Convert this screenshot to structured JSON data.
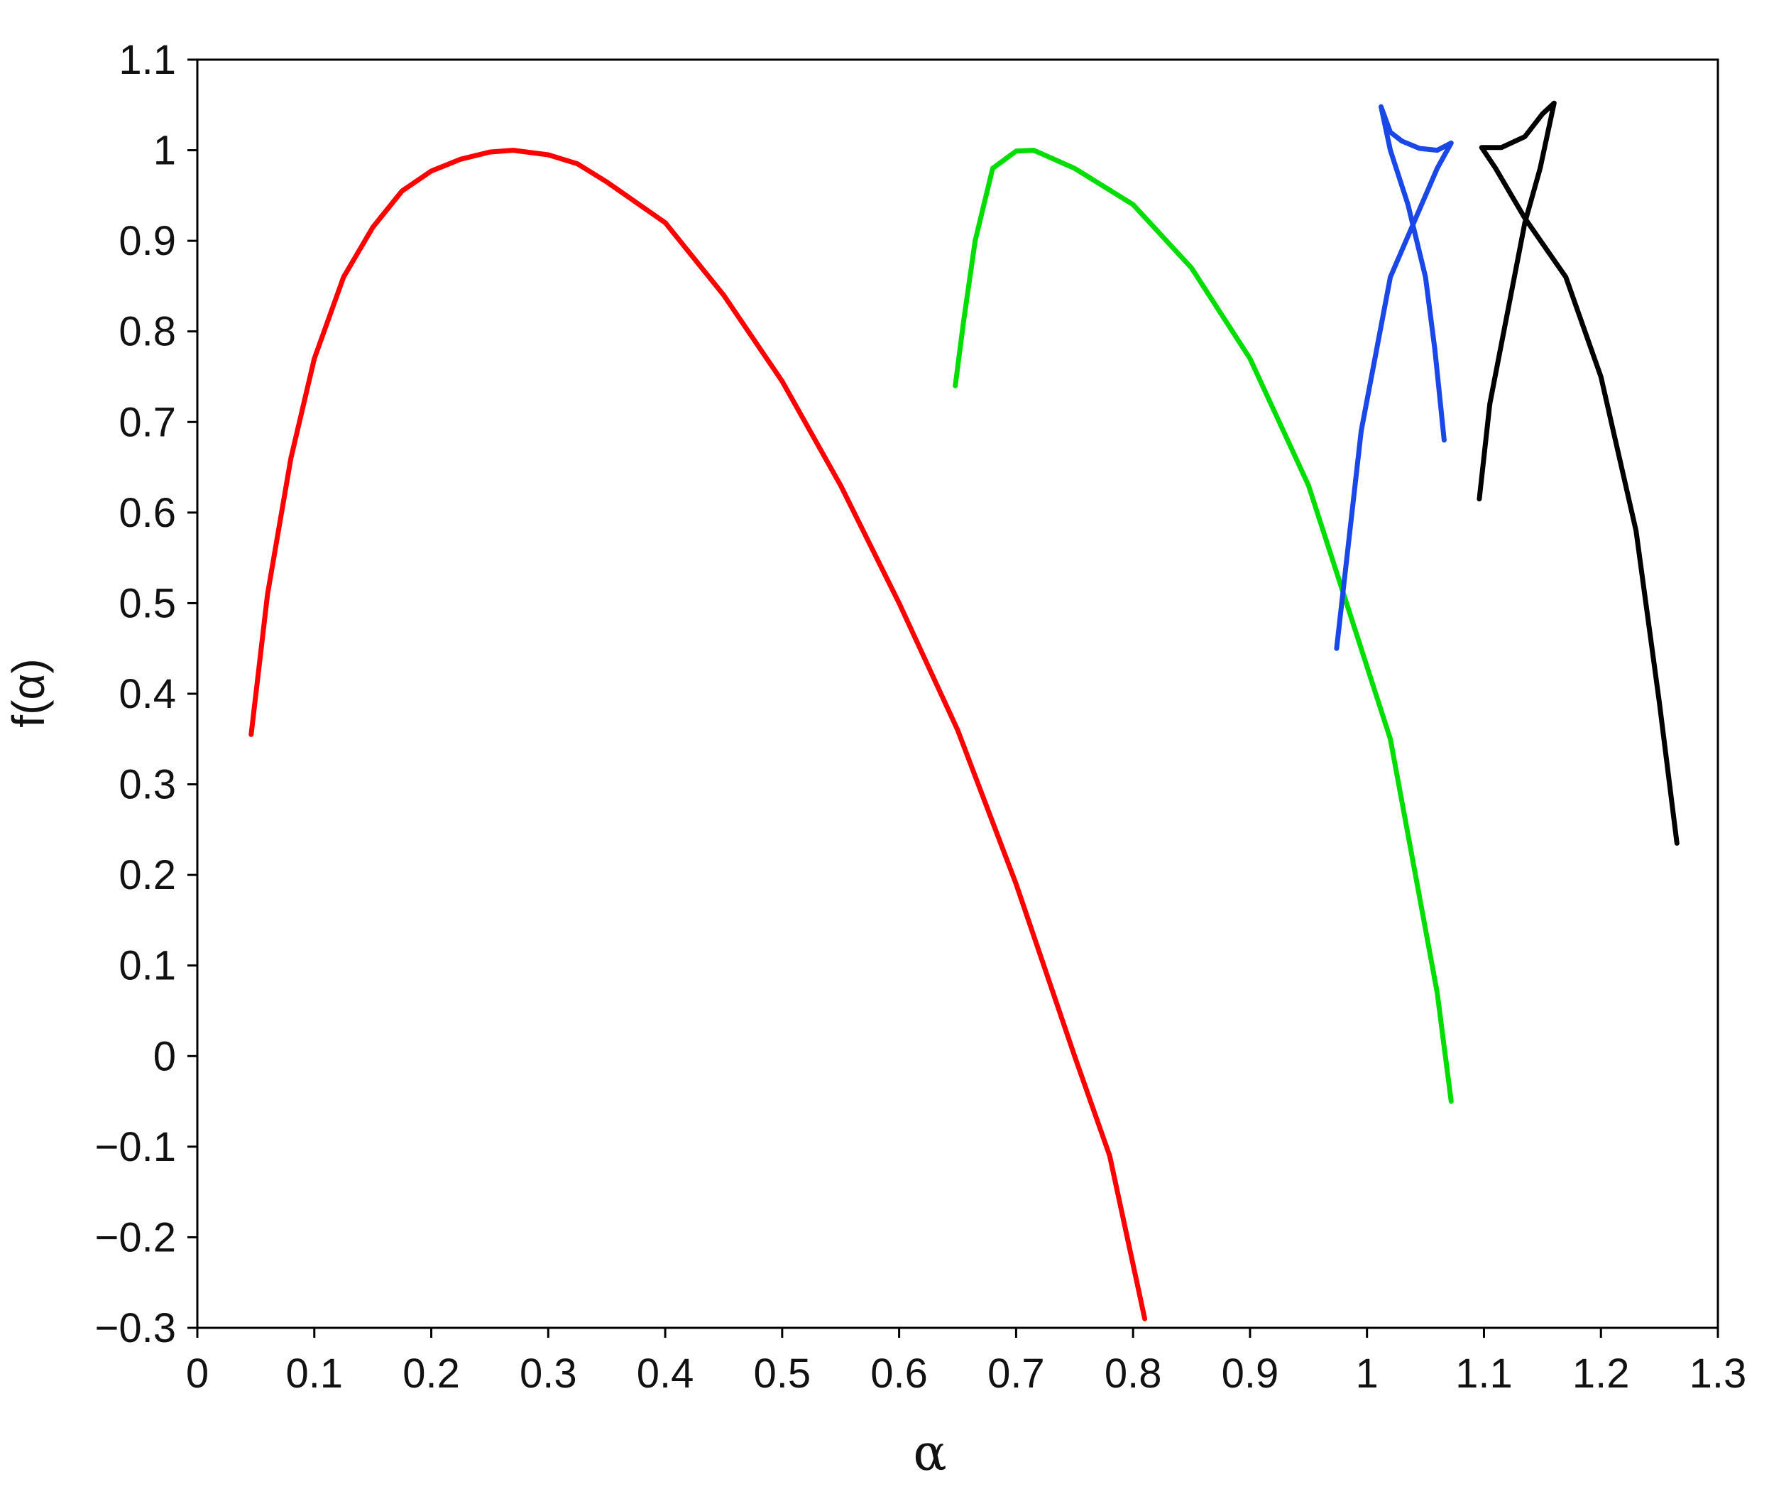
{
  "chart_data": {
    "type": "line",
    "xlabel": "α",
    "ylabel": "f(α)",
    "xlim": [
      0,
      1.3
    ],
    "ylim": [
      -0.3,
      1.1
    ],
    "xticks": [
      "0",
      "0.1",
      "0.2",
      "0.3",
      "0.4",
      "0.5",
      "0.6",
      "0.7",
      "0.8",
      "0.9",
      "1",
      "1.1",
      "1.2",
      "1.3"
    ],
    "yticks": [
      "1.1",
      "1",
      "0.9",
      "0.8",
      "0.7",
      "0.6",
      "0.5",
      "0.4",
      "0.3",
      "0.2",
      "0.1",
      "0",
      "−0.1",
      "−0.2",
      "−0.3"
    ],
    "grid": false,
    "series": [
      {
        "color": "#ff0000",
        "points": [
          [
            0.046,
            0.355
          ],
          [
            0.06,
            0.51
          ],
          [
            0.08,
            0.66
          ],
          [
            0.1,
            0.77
          ],
          [
            0.125,
            0.86
          ],
          [
            0.15,
            0.915
          ],
          [
            0.175,
            0.955
          ],
          [
            0.2,
            0.977
          ],
          [
            0.225,
            0.99
          ],
          [
            0.25,
            0.998
          ],
          [
            0.27,
            1.0
          ],
          [
            0.3,
            0.995
          ],
          [
            0.325,
            0.985
          ],
          [
            0.35,
            0.965
          ],
          [
            0.4,
            0.92
          ],
          [
            0.45,
            0.84
          ],
          [
            0.5,
            0.745
          ],
          [
            0.55,
            0.63
          ],
          [
            0.6,
            0.5
          ],
          [
            0.65,
            0.36
          ],
          [
            0.7,
            0.19
          ],
          [
            0.75,
            0.0
          ],
          [
            0.78,
            -0.11
          ],
          [
            0.81,
            -0.29
          ]
        ]
      },
      {
        "color": "#00dd00",
        "points": [
          [
            0.648,
            0.74
          ],
          [
            0.655,
            0.81
          ],
          [
            0.665,
            0.9
          ],
          [
            0.68,
            0.98
          ],
          [
            0.7,
            0.999
          ],
          [
            0.715,
            1.0
          ],
          [
            0.75,
            0.98
          ],
          [
            0.8,
            0.94
          ],
          [
            0.85,
            0.87
          ],
          [
            0.9,
            0.77
          ],
          [
            0.95,
            0.63
          ],
          [
            0.985,
            0.49
          ],
          [
            1.02,
            0.35
          ],
          [
            1.04,
            0.21
          ],
          [
            1.06,
            0.07
          ],
          [
            1.072,
            -0.05
          ]
        ]
      },
      {
        "color": "#1a47e8",
        "points": [
          [
            0.974,
            0.45
          ],
          [
            0.995,
            0.69
          ],
          [
            1.02,
            0.86
          ],
          [
            1.04,
            0.92
          ],
          [
            1.06,
            0.98
          ],
          [
            1.072,
            1.008
          ],
          [
            1.06,
            1.0
          ],
          [
            1.045,
            1.002
          ],
          [
            1.03,
            1.01
          ],
          [
            1.02,
            1.02
          ],
          [
            1.012,
            1.048
          ],
          [
            1.02,
            1.0
          ],
          [
            1.035,
            0.94
          ],
          [
            1.05,
            0.86
          ],
          [
            1.058,
            0.78
          ],
          [
            1.066,
            0.68
          ]
        ]
      },
      {
        "color": "#000000",
        "points": [
          [
            1.096,
            0.615
          ],
          [
            1.105,
            0.72
          ],
          [
            1.12,
            0.82
          ],
          [
            1.135,
            0.92
          ],
          [
            1.148,
            0.98
          ],
          [
            1.16,
            1.052
          ],
          [
            1.15,
            1.04
          ],
          [
            1.135,
            1.015
          ],
          [
            1.115,
            1.003
          ],
          [
            1.098,
            1.003
          ],
          [
            1.11,
            0.98
          ],
          [
            1.135,
            0.925
          ],
          [
            1.17,
            0.86
          ],
          [
            1.2,
            0.75
          ],
          [
            1.23,
            0.58
          ],
          [
            1.25,
            0.39
          ],
          [
            1.265,
            0.235
          ]
        ]
      }
    ]
  }
}
